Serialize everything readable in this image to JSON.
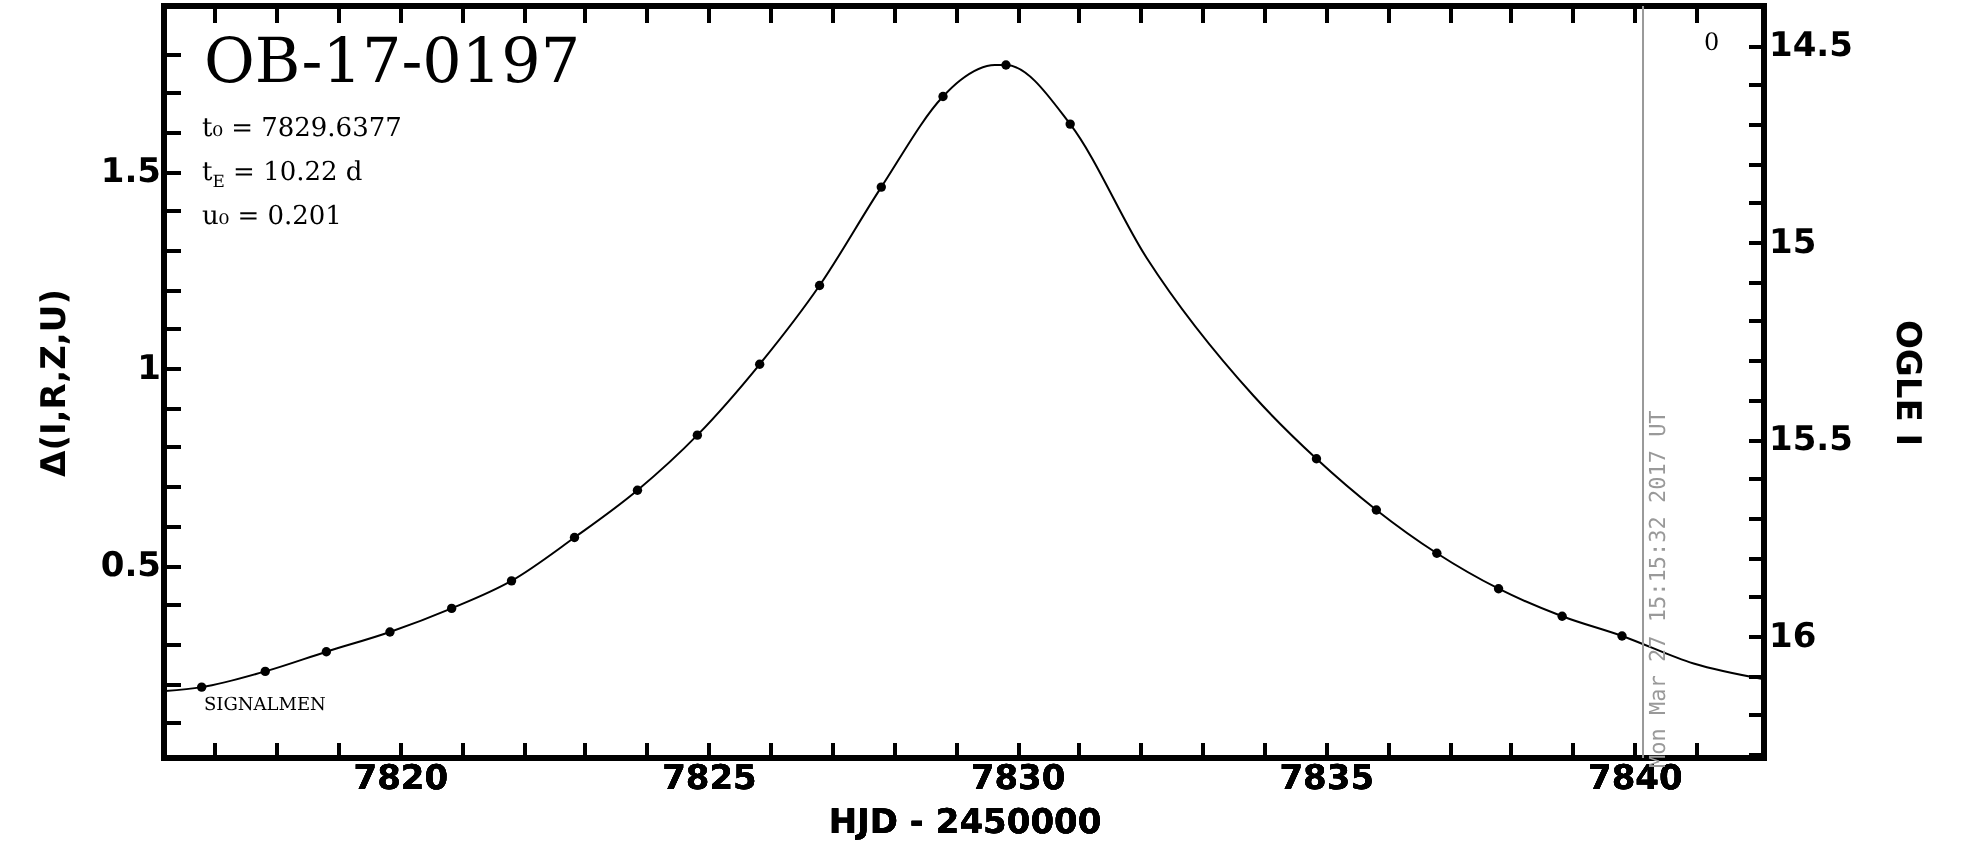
{
  "chart_data": {
    "type": "scatter",
    "title": "OB-17-0197",
    "xlabel": "HJD - 2450000",
    "ylabel": "Δ(I,R,Z,U)",
    "y2label": "OGLE I",
    "annotations": [
      "t₀ = 7829.6377",
      "t$_{E}$ = 10.22 d",
      "u₀ = 0.201",
      "SIGNALMEN",
      "0",
      {
        "text": "Mon Mar 27 15:15:32 2017 UT",
        "x": 7840.14
      }
    ],
    "series": [
      {
        "marker": "circle",
        "color": "#000000",
        "x": [
          7816.79,
          7817.82,
          7818.81,
          7819.84,
          7820.84,
          7821.81,
          7822.83,
          7823.85,
          7824.82,
          7825.83,
          7826.8,
          7827.8,
          7828.8,
          7829.82,
          7830.86,
          7834.85,
          7835.82,
          7836.8,
          7837.8,
          7838.83,
          7839.8
        ],
        "values": [
          0.19,
          0.23,
          0.28,
          0.33,
          0.39,
          0.46,
          0.57,
          0.69,
          0.83,
          1.01,
          1.21,
          1.46,
          1.69,
          1.77,
          1.62,
          0.77,
          0.64,
          0.53,
          0.44,
          0.37,
          0.32
        ]
      },
      {
        "type": "line",
        "marker": "none",
        "color": "#000000",
        "x": [
          7816.2,
          7816.79,
          7817.82,
          7818.81,
          7819.84,
          7820.84,
          7821.81,
          7822.83,
          7823.85,
          7824.82,
          7825.83,
          7826.8,
          7827.8,
          7828.8,
          7829.07,
          7829.64,
          7829.82,
          7830.86,
          7832.1,
          7833.83,
          7834.85,
          7835.82,
          7836.8,
          7837.8,
          7838.83,
          7839.8,
          7840.96,
          7842.1
        ],
        "values": [
          0.18,
          0.19,
          0.23,
          0.28,
          0.33,
          0.39,
          0.46,
          0.57,
          0.69,
          0.83,
          1.01,
          1.21,
          1.46,
          1.69,
          1.73,
          1.77,
          1.77,
          1.62,
          1.28,
          0.93,
          0.77,
          0.64,
          0.53,
          0.44,
          0.37,
          0.32,
          0.25,
          0.21
        ]
      }
    ],
    "ref_lines": [
      {
        "axis": "x",
        "value": 7840.14,
        "color": "#999999"
      }
    ],
    "xlim": [
      7816.18,
      7842.1
    ],
    "xticks": [
      {
        "value": 7817,
        "label": null
      },
      {
        "value": 7818,
        "label": null
      },
      {
        "value": 7819,
        "label": null
      },
      7820,
      {
        "value": 7821,
        "label": null
      },
      {
        "value": 7822,
        "label": null
      },
      {
        "value": 7823,
        "label": null
      },
      {
        "value": 7824,
        "label": null
      },
      7825,
      {
        "value": 7826,
        "label": null
      },
      {
        "value": 7827,
        "label": null
      },
      {
        "value": 7828,
        "label": null
      },
      {
        "value": 7829,
        "label": null
      },
      7830,
      {
        "value": 7831,
        "label": null
      },
      {
        "value": 7832,
        "label": null
      },
      {
        "value": 7833,
        "label": null
      },
      {
        "value": 7834,
        "label": null
      },
      7835,
      {
        "value": 7836,
        "label": null
      },
      {
        "value": 7837,
        "label": null
      },
      {
        "value": 7838,
        "label": null
      },
      {
        "value": 7839,
        "label": null
      },
      7840,
      {
        "value": 7841,
        "label": null
      }
    ],
    "ylim": [
      0.01,
      1.92
    ],
    "yticks": [
      {
        "value": 0.1,
        "label": null
      },
      {
        "value": 0.2,
        "label": null
      },
      {
        "value": 0.3,
        "label": null
      },
      {
        "value": 0.4,
        "label": null
      },
      0.5,
      {
        "value": 0.6,
        "label": null
      },
      {
        "value": 0.7,
        "label": null
      },
      {
        "value": 0.8,
        "label": null
      },
      {
        "value": 0.9,
        "label": null
      },
      1,
      {
        "value": 1.1,
        "label": null
      },
      {
        "value": 1.2,
        "label": null
      },
      {
        "value": 1.3,
        "label": null
      },
      {
        "value": 1.4,
        "label": null
      },
      1.5,
      {
        "value": 1.6,
        "label": null
      },
      {
        "value": 1.7,
        "label": null
      },
      {
        "value": 1.8,
        "label": null
      }
    ],
    "y2lim": [
      16.31,
      14.4
    ],
    "y2ticks": [
      {
        "value": 14.6,
        "label": null
      },
      {
        "value": 14.7,
        "label": null
      },
      {
        "value": 14.8,
        "label": null
      },
      {
        "value": 14.9,
        "label": null
      },
      14.5,
      15,
      {
        "value": 15.1,
        "label": null
      },
      {
        "value": 15.2,
        "label": null
      },
      {
        "value": 15.3,
        "label": null
      },
      {
        "value": 15.4,
        "label": null
      },
      15.5,
      {
        "value": 15.6,
        "label": null
      },
      {
        "value": 15.7,
        "label": null
      },
      {
        "value": 15.8,
        "label": null
      },
      {
        "value": 15.9,
        "label": null
      },
      16,
      {
        "value": 16.1,
        "label": null
      },
      {
        "value": 16.2,
        "label": null
      },
      {
        "value": 16.3,
        "label": null
      }
    ]
  }
}
